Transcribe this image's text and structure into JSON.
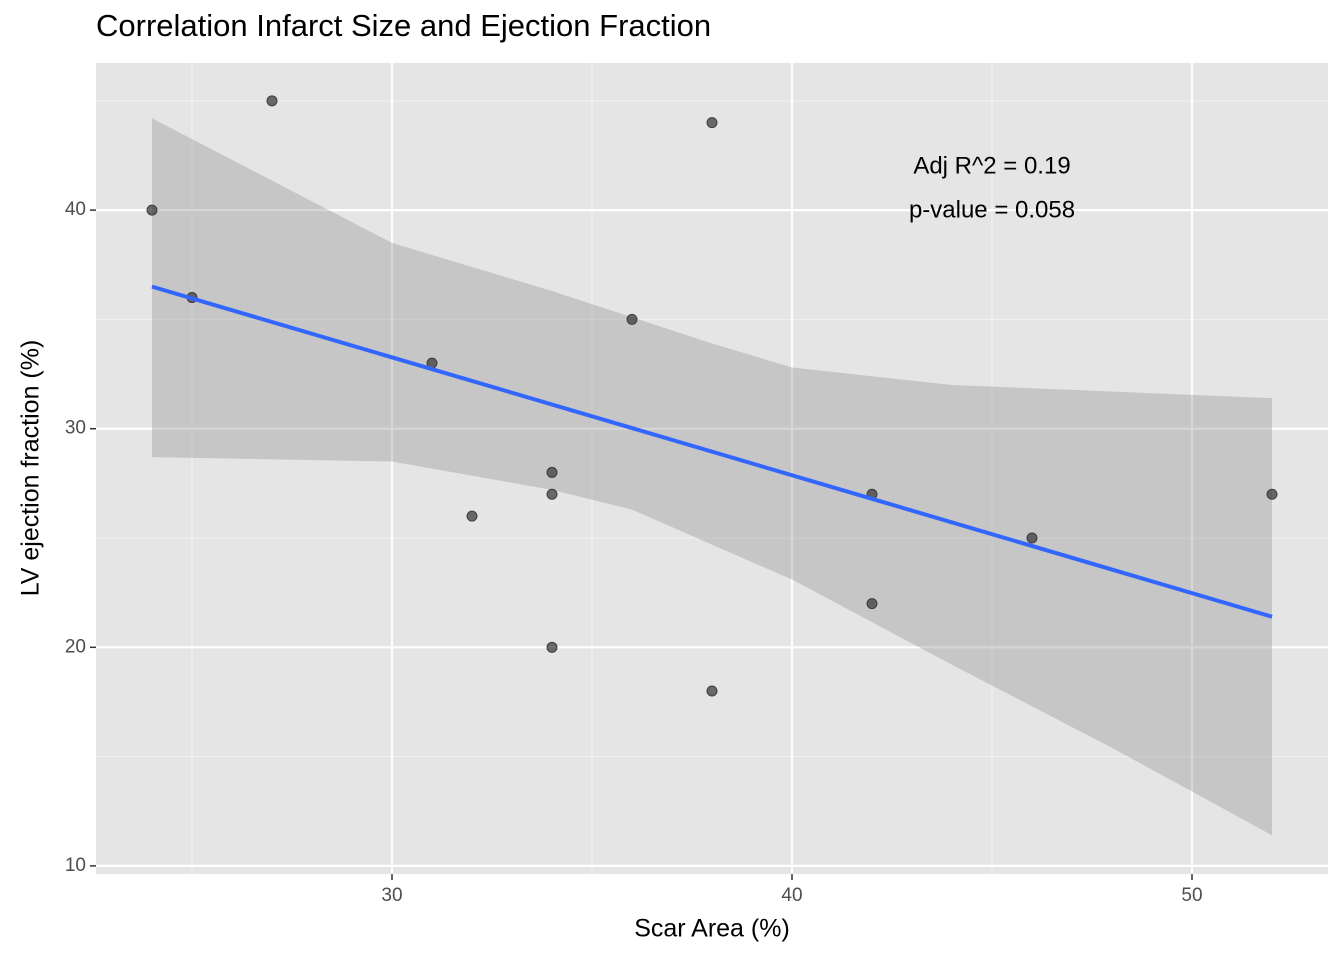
{
  "chart_data": {
    "type": "scatter",
    "title": "Correlation Infarct Size and Ejection Fraction",
    "xlabel": "Scar Area (%)",
    "ylabel": "LV ejection fraction (%)",
    "x": [
      24,
      25,
      27,
      31,
      32,
      34,
      34,
      34,
      36,
      38,
      38,
      42,
      42,
      46,
      52
    ],
    "values": [
      40,
      36,
      45,
      33,
      26,
      28,
      27,
      20,
      35,
      44,
      18,
      27,
      22,
      25,
      27
    ],
    "color": "#333333",
    "fit": {
      "color": "#3366ff",
      "x": [
        24,
        52
      ],
      "values": [
        36.5,
        21.4
      ]
    },
    "band": {
      "color": "#999999",
      "x": [
        24,
        30,
        34,
        36,
        38,
        40,
        44,
        48,
        52
      ],
      "upper": [
        44.2,
        38.5,
        36.3,
        35.1,
        33.9,
        32.8,
        32.0,
        31.7,
        31.4
      ],
      "lower": [
        28.7,
        28.5,
        27.2,
        26.3,
        24.7,
        23.1,
        19.2,
        15.4,
        11.4
      ]
    },
    "annotations": [
      "Adj R^2 = 0.19",
      "p-value = 0.058"
    ],
    "xlim": [
      22.6,
      53.4
    ],
    "xticks": [
      30,
      40,
      50
    ],
    "xminor": [
      25,
      35,
      45
    ],
    "ylim": [
      9.63,
      46.73
    ],
    "yticks": [
      10,
      20,
      30,
      40
    ],
    "yminor": [
      15,
      25,
      35,
      45
    ],
    "grid": true
  }
}
